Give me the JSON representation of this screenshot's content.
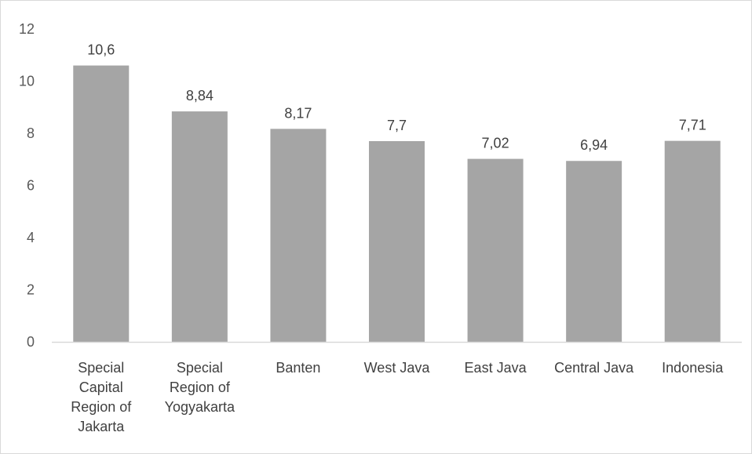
{
  "chart_data": {
    "type": "bar",
    "categories": [
      "Special Capital Region of Jakarta",
      "Special Region of Yogyakarta",
      "Banten",
      "West Java",
      "East Java",
      "Central Java",
      "Indonesia"
    ],
    "category_lines": [
      [
        "Special",
        "Capital",
        "Region of",
        "Jakarta"
      ],
      [
        "Special",
        "Region of",
        "Yogyakarta"
      ],
      [
        "Banten"
      ],
      [
        "West Java"
      ],
      [
        "East Java"
      ],
      [
        "Central Java"
      ],
      [
        "Indonesia"
      ]
    ],
    "values": [
      10.6,
      8.84,
      8.17,
      7.7,
      7.02,
      6.94,
      7.71
    ],
    "data_labels": [
      "10,6",
      "8,84",
      "8,17",
      "7,7",
      "7,02",
      "6,94",
      "7,71"
    ],
    "yticks": [
      "0",
      "2",
      "4",
      "6",
      "8",
      "10",
      "12"
    ],
    "ylim": [
      0,
      12
    ],
    "grid": false,
    "bar_color": "#a5a5a5",
    "axis_color": "#d9d9d9"
  }
}
